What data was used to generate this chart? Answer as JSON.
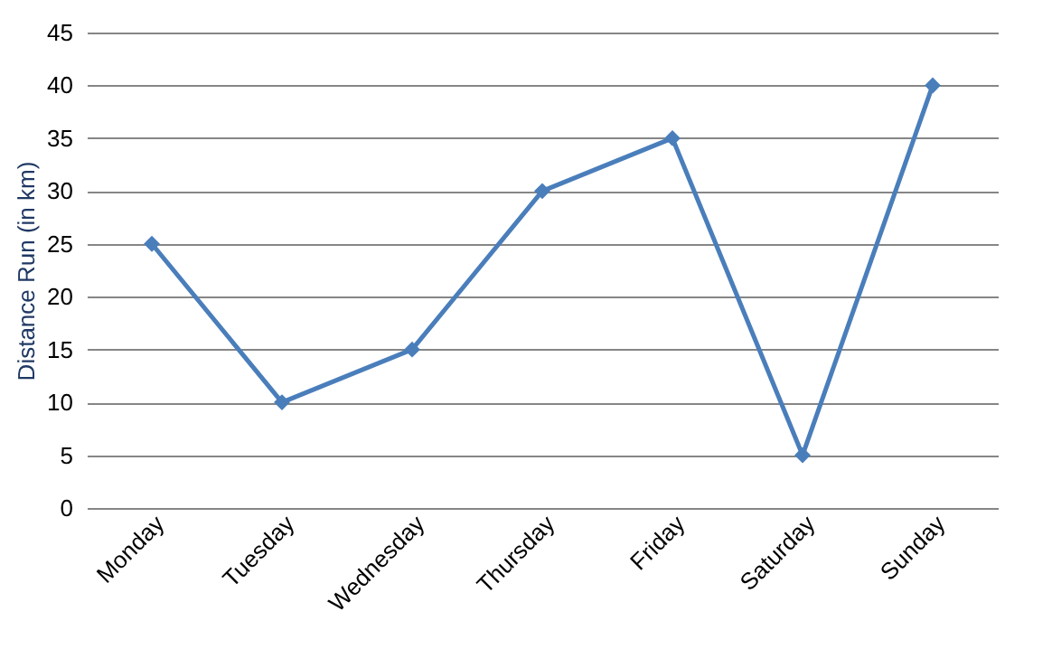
{
  "chart_data": {
    "type": "line",
    "ylabel": "Distance Run (in km)",
    "categories": [
      "Monday",
      "Tuesday",
      "Wednesday",
      "Thursday",
      "Friday",
      "Saturday",
      "Sunday"
    ],
    "series": [
      {
        "color": "#4a7ebb",
        "values": [
          25,
          10,
          15,
          30,
          35,
          5,
          40
        ]
      }
    ],
    "ylim": [
      0,
      45
    ],
    "yticks": [
      0,
      5,
      10,
      15,
      20,
      25,
      30,
      35,
      40,
      45
    ],
    "grid": "y",
    "marker": "diamond",
    "line_style": "solid",
    "legend": false
  }
}
